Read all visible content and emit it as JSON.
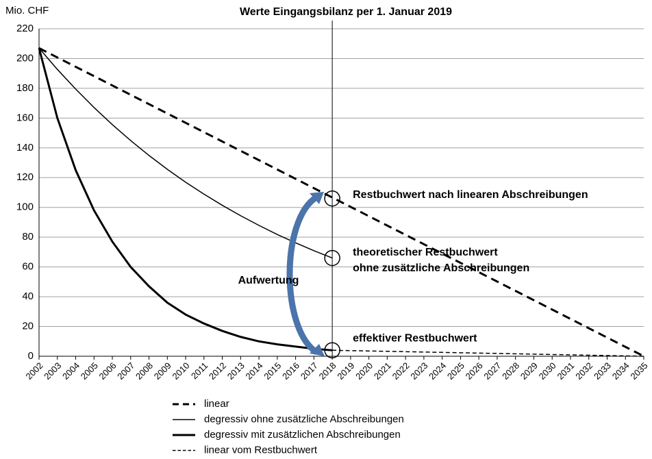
{
  "chart_data": {
    "type": "line",
    "title": "Werte Eingangsbilanz per 1. Januar 2019",
    "y_label": "Mio. CHF",
    "xlim": [
      2002,
      2035
    ],
    "xticks": [
      2002,
      2003,
      2004,
      2005,
      2006,
      2007,
      2008,
      2009,
      2010,
      2011,
      2012,
      2013,
      2014,
      2015,
      2016,
      2017,
      2018,
      2019,
      2020,
      2021,
      2022,
      2023,
      2024,
      2025,
      2026,
      2027,
      2028,
      2029,
      2030,
      2031,
      2032,
      2033,
      2034,
      2035
    ],
    "ylim": [
      0,
      220
    ],
    "yticks": [
      0,
      20,
      40,
      60,
      80,
      100,
      120,
      140,
      160,
      180,
      200,
      220
    ],
    "grid": true,
    "reference_x": 2018,
    "series": [
      {
        "name": "linear",
        "color": "#000000",
        "line_style": "dashed",
        "line_width": 3,
        "x": [
          2002,
          2035
        ],
        "values": [
          207,
          0
        ]
      },
      {
        "name": "degressiv ohne zusätzliche Abschreibungen",
        "color": "#000000",
        "line_style": "solid",
        "line_width": 1.5,
        "x": [
          2002,
          2003,
          2004,
          2005,
          2006,
          2007,
          2008,
          2009,
          2010,
          2011,
          2012,
          2013,
          2014,
          2015,
          2016,
          2017,
          2018
        ],
        "values": [
          207,
          192.7,
          179.5,
          167.1,
          155.6,
          144.9,
          134.9,
          125.6,
          116.9,
          108.9,
          101.4,
          94.4,
          87.9,
          81.8,
          76.2,
          70.9,
          66
        ]
      },
      {
        "name": "degressiv mit zusätzlichen Abschreibungen",
        "color": "#000000",
        "line_style": "solid",
        "line_width": 3,
        "x": [
          2002,
          2003,
          2004,
          2005,
          2006,
          2007,
          2008,
          2009,
          2010,
          2011,
          2012,
          2013,
          2014,
          2015,
          2016,
          2017,
          2018
        ],
        "values": [
          207,
          160,
          125,
          98,
          77,
          60,
          47,
          36,
          28,
          22,
          17,
          13,
          10,
          8,
          6.5,
          5,
          4
        ]
      },
      {
        "name": "linear vom Restbuchwert",
        "color": "#000000",
        "line_style": "dashed",
        "line_width": 1.5,
        "x": [
          2018,
          2035
        ],
        "values": [
          4,
          0
        ]
      }
    ],
    "annotations": [
      {
        "lines": [
          "Restbuchwert nach linearen Abschreibungen"
        ],
        "x": 2018,
        "y": 106
      },
      {
        "lines": [
          "theoretischer Restbuchwert",
          "ohne zusätzliche Abschreibungen"
        ],
        "x": 2018,
        "y": 66
      },
      {
        "lines": [
          "effektiver Restbuchwert"
        ],
        "x": 2018,
        "y": 4
      }
    ],
    "arrow_label": "Aufwertung"
  }
}
